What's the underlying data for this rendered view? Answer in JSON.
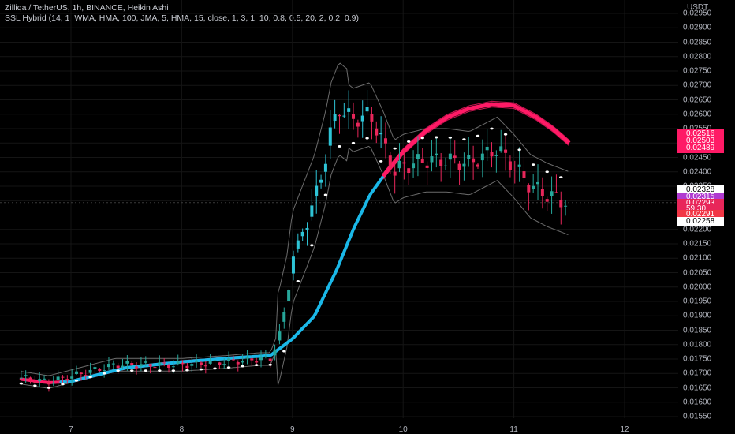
{
  "header": {
    "title": "Zilliqa / TetherUS, 1h, BINANCE, Heikin Ashi",
    "indicator": "SSL Hybrid (14, 1, WMA, HMA, 100, JMA, 5, HMA, 15, close, 1, 3, 1, 10, 0.8, 0.5, 20, 2, 0.2, 0.9)"
  },
  "price_scale": {
    "currency": "USDT",
    "ticks": [
      "0.02950",
      "0.02900",
      "0.02850",
      "0.02800",
      "0.02750",
      "0.02700",
      "0.02650",
      "0.02600",
      "0.02550",
      "0.02500",
      "0.02450",
      "0.02400",
      "0.02350",
      "0.02300",
      "0.02250",
      "0.02200",
      "0.02150",
      "0.02100",
      "0.02050",
      "0.02000",
      "0.01950",
      "0.01900",
      "0.01850",
      "0.01800",
      "0.01750",
      "0.01700",
      "0.01650",
      "0.01600",
      "0.01550"
    ],
    "tags": [
      {
        "label": "0.02516",
        "bg": "#ff1a66",
        "fg": "#ffffff"
      },
      {
        "label": "0.02503",
        "bg": "#ff1a66",
        "fg": "#ffffff"
      },
      {
        "label": "0.02489",
        "bg": "#ff1a66",
        "fg": "#ffffff"
      },
      {
        "label": "0.02328",
        "bg": "#ffffff",
        "fg": "#000000"
      },
      {
        "label": "0.02315",
        "bg": "#b03ad0",
        "fg": "#ffffff"
      },
      {
        "label": "0.02293",
        "bg": "#e8265a",
        "fg": "#ffffff"
      },
      {
        "label": "59:30",
        "bg": "#e8265a",
        "fg": "#ffffff"
      },
      {
        "label": "0.02291",
        "bg": "#f23645",
        "fg": "#ffffff"
      },
      {
        "label": "0.02258",
        "bg": "#ffffff",
        "fg": "#000000"
      }
    ]
  },
  "time_scale": {
    "ticks": [
      "7",
      "8",
      "9",
      "10",
      "11",
      "12"
    ]
  },
  "colors": {
    "up": "#26a69a",
    "up_bright": "#2ec4d6",
    "down": "#e8265a",
    "baseline_up": "#1ab8e8",
    "baseline_down": "#ff1a66",
    "channel": "#6b6b6b",
    "grid": "#151515"
  },
  "chart_data": {
    "type": "candlestick",
    "title": "Zilliqa / TetherUS, 1h, BINANCE, Heikin Ashi",
    "ylim": [
      0.0153,
      0.0297
    ],
    "x_ticks": [
      "7",
      "8",
      "9",
      "10",
      "11",
      "12"
    ],
    "series": [
      {
        "name": "Heikin Ashi candles (approx close by segment)",
        "points": [
          [
            "7",
            0.0169
          ],
          [
            "8",
            0.0173
          ],
          [
            "8.8",
            0.0175
          ],
          [
            "9",
            0.0182
          ],
          [
            "9.2",
            0.0232
          ],
          [
            "9.45",
            0.0262
          ],
          [
            "9.8",
            0.0248
          ],
          [
            "10",
            0.024
          ],
          [
            "10.6",
            0.0245
          ],
          [
            "10.85",
            0.0248
          ],
          [
            "11.2",
            0.0236
          ],
          [
            "11.5",
            0.0229
          ]
        ]
      },
      {
        "name": "SSL baseline",
        "points": [
          [
            "6.55",
            0.0168
          ],
          [
            "7",
            0.0167
          ],
          [
            "8",
            0.0174
          ],
          [
            "8.8",
            0.0176
          ],
          [
            "9.3",
            0.0196
          ],
          [
            "9.7",
            0.023
          ],
          [
            "10",
            0.0247
          ],
          [
            "10.4",
            0.0258
          ],
          [
            "11",
            0.0264
          ],
          [
            "11.5",
            0.025
          ]
        ]
      }
    ]
  }
}
